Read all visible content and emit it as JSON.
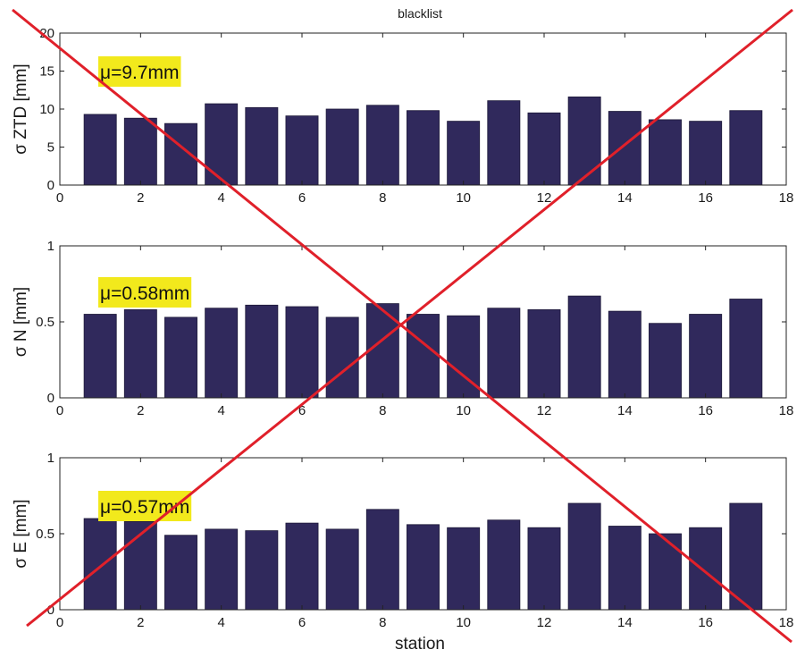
{
  "figure": {
    "title": "blacklist",
    "xlabel": "station"
  },
  "colors": {
    "bar": "#30295c",
    "label_background": "#f2e91c",
    "cross": "#e0202a",
    "axis": "#222222"
  },
  "chart_data": [
    {
      "type": "bar",
      "title": "blacklist",
      "ylabel": "σ ZTD [mm]",
      "xlabel": "",
      "xlim": [
        0,
        18
      ],
      "ylim": [
        0,
        20
      ],
      "xticks": [
        0,
        2,
        4,
        6,
        8,
        10,
        12,
        14,
        16,
        18
      ],
      "yticks": [
        0,
        5,
        10,
        15,
        20
      ],
      "x": [
        1,
        2,
        3,
        4,
        5,
        6,
        7,
        8,
        9,
        10,
        11,
        12,
        13,
        14,
        15,
        16,
        17
      ],
      "values": [
        9.3,
        8.8,
        8.1,
        10.7,
        10.2,
        9.1,
        10.0,
        10.5,
        9.8,
        8.4,
        11.1,
        9.5,
        11.6,
        9.7,
        8.6,
        8.4,
        9.8
      ],
      "annotation": "μ=9.7mm",
      "grid": false
    },
    {
      "type": "bar",
      "title": "",
      "ylabel": "σ N [mm]",
      "xlabel": "",
      "xlim": [
        0,
        18
      ],
      "ylim": [
        0,
        1
      ],
      "xticks": [
        0,
        2,
        4,
        6,
        8,
        10,
        12,
        14,
        16,
        18
      ],
      "yticks": [
        0,
        0.5,
        1
      ],
      "x": [
        1,
        2,
        3,
        4,
        5,
        6,
        7,
        8,
        9,
        10,
        11,
        12,
        13,
        14,
        15,
        16,
        17
      ],
      "values": [
        0.55,
        0.58,
        0.53,
        0.59,
        0.61,
        0.6,
        0.53,
        0.62,
        0.55,
        0.54,
        0.59,
        0.58,
        0.67,
        0.57,
        0.49,
        0.55,
        0.65
      ],
      "annotation": "μ=0.58mm",
      "grid": false
    },
    {
      "type": "bar",
      "title": "",
      "ylabel": "σ E [mm]",
      "xlabel": "station",
      "xlim": [
        0,
        18
      ],
      "ylim": [
        0,
        1
      ],
      "xticks": [
        0,
        2,
        4,
        6,
        8,
        10,
        12,
        14,
        16,
        18
      ],
      "yticks": [
        0,
        0.5,
        1
      ],
      "x": [
        1,
        2,
        3,
        4,
        5,
        6,
        7,
        8,
        9,
        10,
        11,
        12,
        13,
        14,
        15,
        16,
        17
      ],
      "values": [
        0.6,
        0.58,
        0.49,
        0.53,
        0.52,
        0.57,
        0.53,
        0.66,
        0.56,
        0.54,
        0.59,
        0.54,
        0.7,
        0.55,
        0.5,
        0.54,
        0.7
      ],
      "annotation": "μ=0.57mm",
      "grid": false
    }
  ]
}
